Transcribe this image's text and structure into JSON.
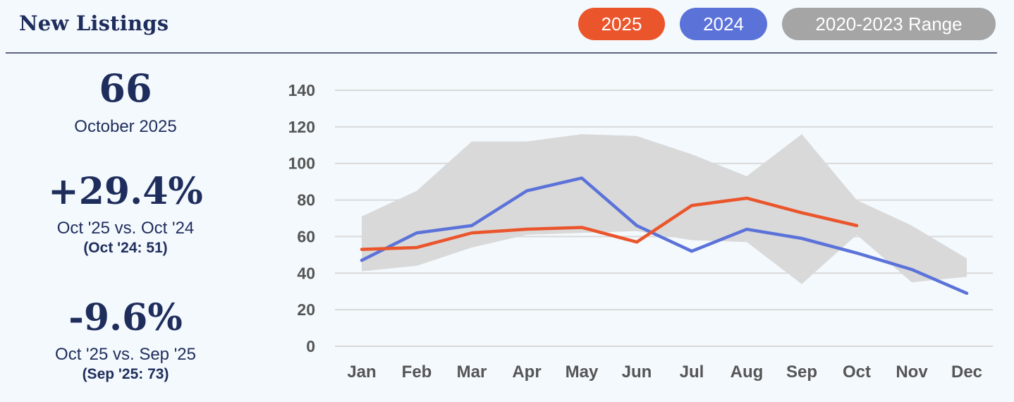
{
  "title": "New Listings",
  "legend": {
    "y2025": "2025",
    "y2024": "2024",
    "range": "2020-2023 Range"
  },
  "stats": {
    "current_value": "66",
    "current_period": "October 2025",
    "yoy_change": "+29.4%",
    "yoy_label": "Oct '25 vs. Oct '24",
    "yoy_ref": "(Oct '24: 51)",
    "mom_change": "-9.6%",
    "mom_label": "Oct '25 vs. Sep '25",
    "mom_ref": "(Sep '25: 73)"
  },
  "colors": {
    "y2025": "#ea552b",
    "y2024": "#5b72d9",
    "range": "#d9d9d9",
    "grid": "#d9d9d9"
  },
  "chart_data": {
    "type": "line",
    "title": "New Listings",
    "categories": [
      "Jan",
      "Feb",
      "Mar",
      "Apr",
      "May",
      "Jun",
      "Jul",
      "Aug",
      "Sep",
      "Oct",
      "Nov",
      "Dec"
    ],
    "ylim": [
      0,
      140
    ],
    "yticks": [
      0,
      20,
      40,
      60,
      80,
      100,
      120,
      140
    ],
    "grid": true,
    "series": [
      {
        "name": "2025",
        "values": [
          53,
          54,
          62,
          64,
          65,
          57,
          77,
          81,
          73,
          66,
          null,
          null
        ]
      },
      {
        "name": "2024",
        "values": [
          47,
          62,
          66,
          85,
          92,
          66,
          52,
          64,
          59,
          51,
          42,
          29
        ]
      }
    ],
    "range": {
      "name": "2020-2023 Range",
      "min": [
        41,
        44,
        54,
        61,
        62,
        63,
        58,
        57,
        34,
        61,
        35,
        38
      ],
      "max": [
        71,
        85,
        112,
        112,
        116,
        115,
        105,
        93,
        116,
        80,
        66,
        48
      ]
    }
  }
}
